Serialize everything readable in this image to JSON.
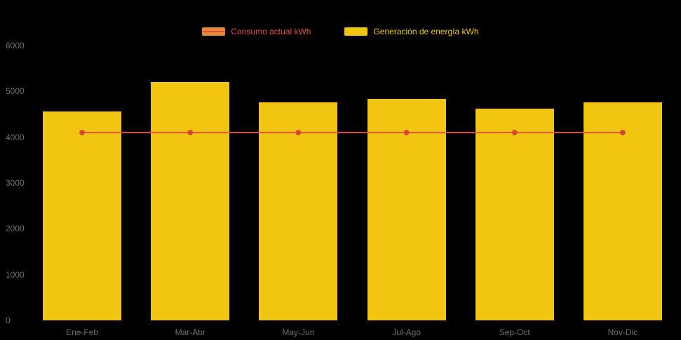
{
  "colors": {
    "background": "#000000",
    "bar": "#F2C511",
    "line": "#E0533C",
    "line_marker": "#D64530",
    "legend_line_swatch_fill": "#E8883B",
    "legend_line_text": "#E0533C",
    "legend_bar_text": "#F2C511",
    "axis_text": "#6e6e6e"
  },
  "legend": [
    {
      "label": "Consumo actual kWh",
      "type": "line"
    },
    {
      "label": "Generación de energía kWh",
      "type": "bar"
    }
  ],
  "chart_data": {
    "type": "bar",
    "title": "",
    "xlabel": "",
    "ylabel": "",
    "categories": [
      "Ene-Feb",
      "Mar-Abr",
      "May-Jun",
      "Jul-Ago",
      "Sep-Oct",
      "Nov-Dic"
    ],
    "series": [
      {
        "name": "Generación de energía kWh",
        "type": "bar",
        "color": "#F2C511",
        "values": [
          4560,
          5200,
          4760,
          4840,
          4630,
          4760
        ]
      },
      {
        "name": "Consumo actual kWh",
        "type": "line",
        "color": "#E0533C",
        "values": [
          4100,
          4100,
          4100,
          4100,
          4100,
          4100
        ]
      }
    ],
    "ylim": [
      0,
      6000
    ],
    "yticks": [
      0,
      1000,
      2000,
      3000,
      4000,
      5000,
      6000
    ],
    "grid": false,
    "legend_position": "top"
  }
}
